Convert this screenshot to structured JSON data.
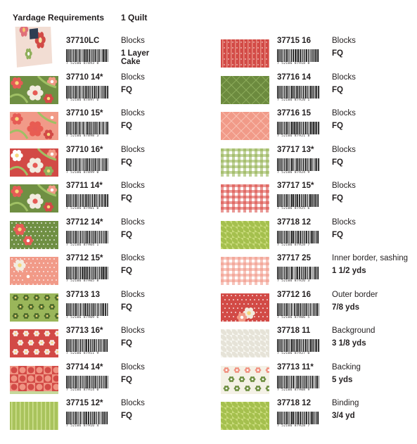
{
  "header": {
    "title": "Yardage Requirements",
    "quantity": "1 Quilt"
  },
  "colors": {
    "red": "#d24a46",
    "green": "#6f8f43",
    "light_green": "#b9cf6c",
    "pink": "#f09483",
    "cream": "#f4f1e6"
  },
  "left_items": [
    {
      "code": "37710LC",
      "usage": "Blocks",
      "amount": "1 Layer Cake",
      "barcode": "7 52106 87893 8",
      "pattern": "layer-cake"
    },
    {
      "code": "37710 14*",
      "usage": "Blocks",
      "amount": "FQ",
      "barcode": "7 52106 87897 6",
      "pattern": "floral-green"
    },
    {
      "code": "37710 15*",
      "usage": "Blocks",
      "amount": "FQ",
      "barcode": "7 52106 87898 3",
      "pattern": "floral-pink"
    },
    {
      "code": "37710 16*",
      "usage": "Blocks",
      "amount": "FQ",
      "barcode": "7 52106 87899 0",
      "pattern": "floral-red"
    },
    {
      "code": "37711 14*",
      "usage": "Blocks",
      "amount": "FQ",
      "barcode": "7 52106 87901 0",
      "pattern": "floral-green-small"
    },
    {
      "code": "37712 14*",
      "usage": "Blocks",
      "amount": "FQ",
      "barcode": "7 52106 87904 1",
      "pattern": "dot-green"
    },
    {
      "code": "37712 15*",
      "usage": "Blocks",
      "amount": "FQ",
      "barcode": "7 52106 87905 8",
      "pattern": "dot-pink"
    },
    {
      "code": "37713 13",
      "usage": "Blocks",
      "amount": "FQ",
      "barcode": "7 52106 87909 6",
      "pattern": "flower-lightgreen"
    },
    {
      "code": "37713 16*",
      "usage": "Blocks",
      "amount": "FQ",
      "barcode": "7 52106 87911 9",
      "pattern": "flower-red"
    },
    {
      "code": "37714 14*",
      "usage": "Blocks",
      "amount": "FQ",
      "barcode": "7 52106 87914 0",
      "pattern": "circles-green"
    },
    {
      "code": "37715 12*",
      "usage": "Blocks",
      "amount": "FQ",
      "barcode": "7 52106 87916 4",
      "pattern": "stripe-lightgreen"
    }
  ],
  "right_items": [
    {
      "code": "37715 16",
      "usage": "Blocks",
      "amount": "FQ",
      "barcode": "7 52106 87918 8",
      "pattern": "stripe-red"
    },
    {
      "code": "37716 14",
      "usage": "Blocks",
      "amount": "FQ",
      "barcode": "7 52106 87920 1",
      "pattern": "diamond-green"
    },
    {
      "code": "37716 15",
      "usage": "Blocks",
      "amount": "FQ",
      "barcode": "7 52106 87921 8",
      "pattern": "diamond-pink"
    },
    {
      "code": "37717 13*",
      "usage": "Blocks",
      "amount": "FQ",
      "barcode": "7 52106 87924 9",
      "pattern": "gingham-green"
    },
    {
      "code": "37717 15*",
      "usage": "Blocks",
      "amount": "FQ",
      "barcode": "7 52106 87925 6",
      "pattern": "gingham-red"
    },
    {
      "code": "37718 12",
      "usage": "Blocks",
      "amount": "FQ",
      "barcode": "7 52106 87928 7",
      "pattern": "houndstooth-green"
    },
    {
      "code": "37717 25",
      "usage": "Inner border, sashing",
      "amount": "1 1/2 yds",
      "barcode": "7 52106 87926 3",
      "pattern": "gingham-pink"
    },
    {
      "code": "37712 16",
      "usage": "Outer border",
      "amount": "7/8 yds",
      "barcode": "7 52106 87906 5",
      "pattern": "dot-red"
    },
    {
      "code": "37718 11",
      "usage": "Background",
      "amount": "3 1/8 yds",
      "barcode": "7 52106 87927 0",
      "pattern": "houndstooth-cream"
    },
    {
      "code": "37713 11*",
      "usage": "Backing",
      "amount": "5 yds",
      "barcode": "7 52106 87908 9",
      "pattern": "flower-cream"
    },
    {
      "code": "37718 12",
      "usage": "Binding",
      "amount": "3/4 yd",
      "barcode": "7 52106 87928 7",
      "pattern": "houndstooth-green"
    }
  ]
}
